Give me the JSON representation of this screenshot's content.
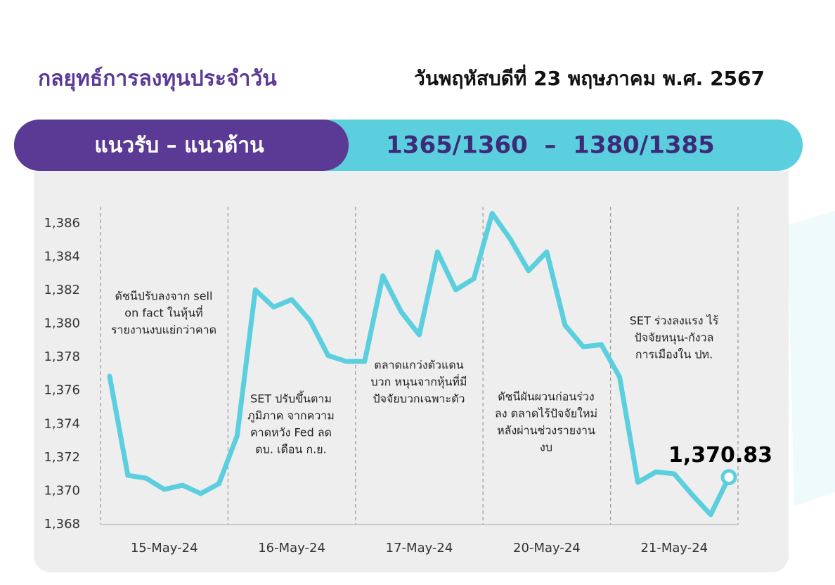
{
  "header": {
    "title": "กลยุทธ์การลงทุนประจำวัน",
    "date": "วันพฤหัสบดีที่ 23 พฤษภาคม พ.ศ. 2567"
  },
  "banner": {
    "label": "แนวรับ – แนวต้าน",
    "value": "1365/1360  –  1380/1385"
  },
  "chart_data": {
    "type": "line",
    "series": [
      {
        "color": "#5ccfdf",
        "values": [
          1376.87,
          1370.94,
          1370.77,
          1370.1,
          1370.35,
          1369.85,
          1370.44,
          1373.3,
          1382.03,
          1381.0,
          1381.45,
          1380.2,
          1378.1,
          1377.75,
          1377.75,
          1382.87,
          1380.73,
          1379.34,
          1384.3,
          1382.03,
          1382.7,
          1386.6,
          1385.06,
          1383.17,
          1384.3,
          1379.93,
          1378.63,
          1378.75,
          1376.82,
          1370.52,
          1371.15,
          1371.03,
          1369.76,
          1368.59,
          1370.83
        ],
        "value_labels": [
          null,
          null,
          null,
          null,
          null,
          null,
          null,
          null,
          null,
          null,
          null,
          null,
          null,
          null,
          null,
          null,
          null,
          null,
          null,
          null,
          null,
          null,
          null,
          null,
          null,
          null,
          null,
          null,
          null,
          null,
          null,
          null,
          null,
          null,
          "1,370.83"
        ]
      }
    ],
    "xlim": [
      -0.5,
      34.5
    ],
    "xticks": [
      {
        "value": 3,
        "label": "15-May-24"
      },
      {
        "value": 10,
        "label": "16-May-24"
      },
      {
        "value": 17,
        "label": "17-May-24"
      },
      {
        "value": 24,
        "label": "20-May-24"
      },
      {
        "value": 31,
        "label": "21-May-24"
      }
    ],
    "ylim": [
      1368,
      1387
    ],
    "yticks": [
      {
        "value": 1368,
        "label": "1,368"
      },
      {
        "value": 1370,
        "label": "1,370"
      },
      {
        "value": 1372,
        "label": "1,372"
      },
      {
        "value": 1374,
        "label": "1,374"
      },
      {
        "value": 1376,
        "label": "1,376"
      },
      {
        "value": 1378,
        "label": "1,378"
      },
      {
        "value": 1380,
        "label": "1,380"
      },
      {
        "value": 1382,
        "label": "1,382"
      },
      {
        "value": 1384,
        "label": "1,384"
      },
      {
        "value": 1386,
        "label": "1,386"
      }
    ],
    "annotations": [
      [
        "ดัชนีปรับลงจาก sell",
        "on fact ในหุ้นที่",
        "รายงานงบแย่กว่าคาด"
      ],
      [
        "SET ปรับขึ้นตาม",
        "ภูมิภาค จากความ",
        "คาดหวัง Fed ลด",
        "ดบ. เดือน ก.ย."
      ],
      [
        "ตลาดแกว่งตัวแดน",
        "บวก หนุนจากหุ้นที่มี",
        "ปัจจัยบวกเฉพาะตัว"
      ],
      [
        "ดัชนีผันผวนก่อนร่วง",
        "ลง ตลาดไร้ปัจจัยใหม่",
        "หลังผ่านช่วงรายงาน",
        "งบ"
      ],
      [
        "SET ร่วงลงแรง ไร้",
        "ปัจจัยหนุน-กังวล",
        "การเมืองใน ปท."
      ]
    ]
  }
}
